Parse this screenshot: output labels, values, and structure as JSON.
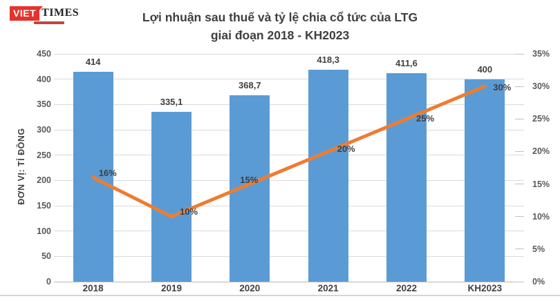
{
  "header": {
    "logo": {
      "viet": "VIET",
      "times": "TIMES"
    },
    "title_line1": "Lợi nhuận sau thuế và tỷ lệ chia cổ tức của LTG",
    "title_line2": "giai đoạn 2018 - KH2023"
  },
  "chart_data": {
    "type": "combo",
    "title": "Lợi nhuận sau thuế và tỷ lệ chia cổ tức của LTG giai đoạn 2018 - KH2023",
    "categories": [
      "2018",
      "2019",
      "2020",
      "2021",
      "2022",
      "KH2023"
    ],
    "series": [
      {
        "name": "Lợi nhuận sau thuế",
        "type": "bar",
        "axis": "left",
        "color": "#5B9BD5",
        "values": [
          414,
          335.1,
          368.7,
          418.3,
          411.6,
          400
        ],
        "labels": [
          "414",
          "335,1",
          "368,7",
          "418,3",
          "411,6",
          "400"
        ]
      },
      {
        "name": "Tỷ lệ chia cổ tức",
        "type": "line",
        "axis": "right",
        "color": "#ED7D31",
        "values": [
          16,
          10,
          15,
          20,
          25,
          30
        ],
        "labels": [
          "16%",
          "10%",
          "15%",
          "20%",
          "25%",
          "30%"
        ]
      }
    ],
    "left_axis": {
      "title": "ĐƠN VỊ: TỈ ĐỒNG",
      "min": 0,
      "max": 450,
      "step": 50,
      "ticks": [
        "450",
        "400",
        "350",
        "300",
        "250",
        "200",
        "150",
        "100",
        "50",
        "0"
      ]
    },
    "right_axis": {
      "min": 0,
      "max": 35,
      "step": 5,
      "ticks": [
        "35%",
        "30%",
        "25%",
        "20%",
        "15%",
        "10%",
        "5%",
        "0%"
      ]
    },
    "grid": true,
    "legend_position": "none"
  },
  "colors": {
    "bar": "#5B9BD5",
    "line": "#ED7D31",
    "grid": "#D9D9D9",
    "axis_text": "#595959",
    "label_text": "#404040",
    "logo_red": "#E2342C"
  }
}
